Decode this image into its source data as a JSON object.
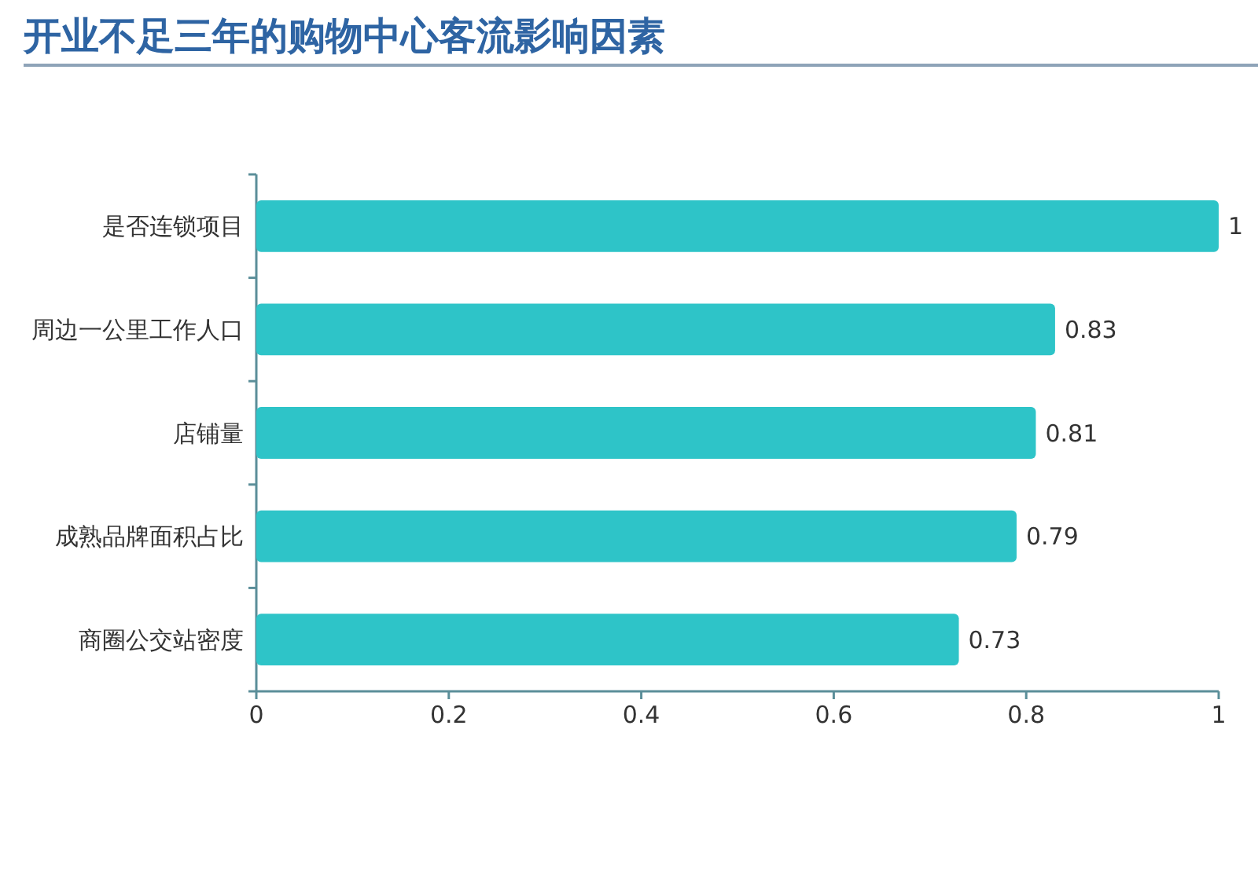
{
  "chart_data": {
    "type": "bar",
    "orientation": "horizontal",
    "title": "开业不足三年的购物中心客流影响因素",
    "categories": [
      "是否连锁项目",
      "周边一公里工作人口",
      "店铺量",
      "成熟品牌面积占比",
      "商圈公交站密度"
    ],
    "values": [
      1,
      0.83,
      0.81,
      0.79,
      0.73
    ],
    "color": "#2ec4c8",
    "xlim": [
      0,
      1
    ],
    "xticks": [
      0,
      0.2,
      0.4,
      0.6,
      0.8,
      1
    ],
    "data_labels": true,
    "grid": false
  }
}
